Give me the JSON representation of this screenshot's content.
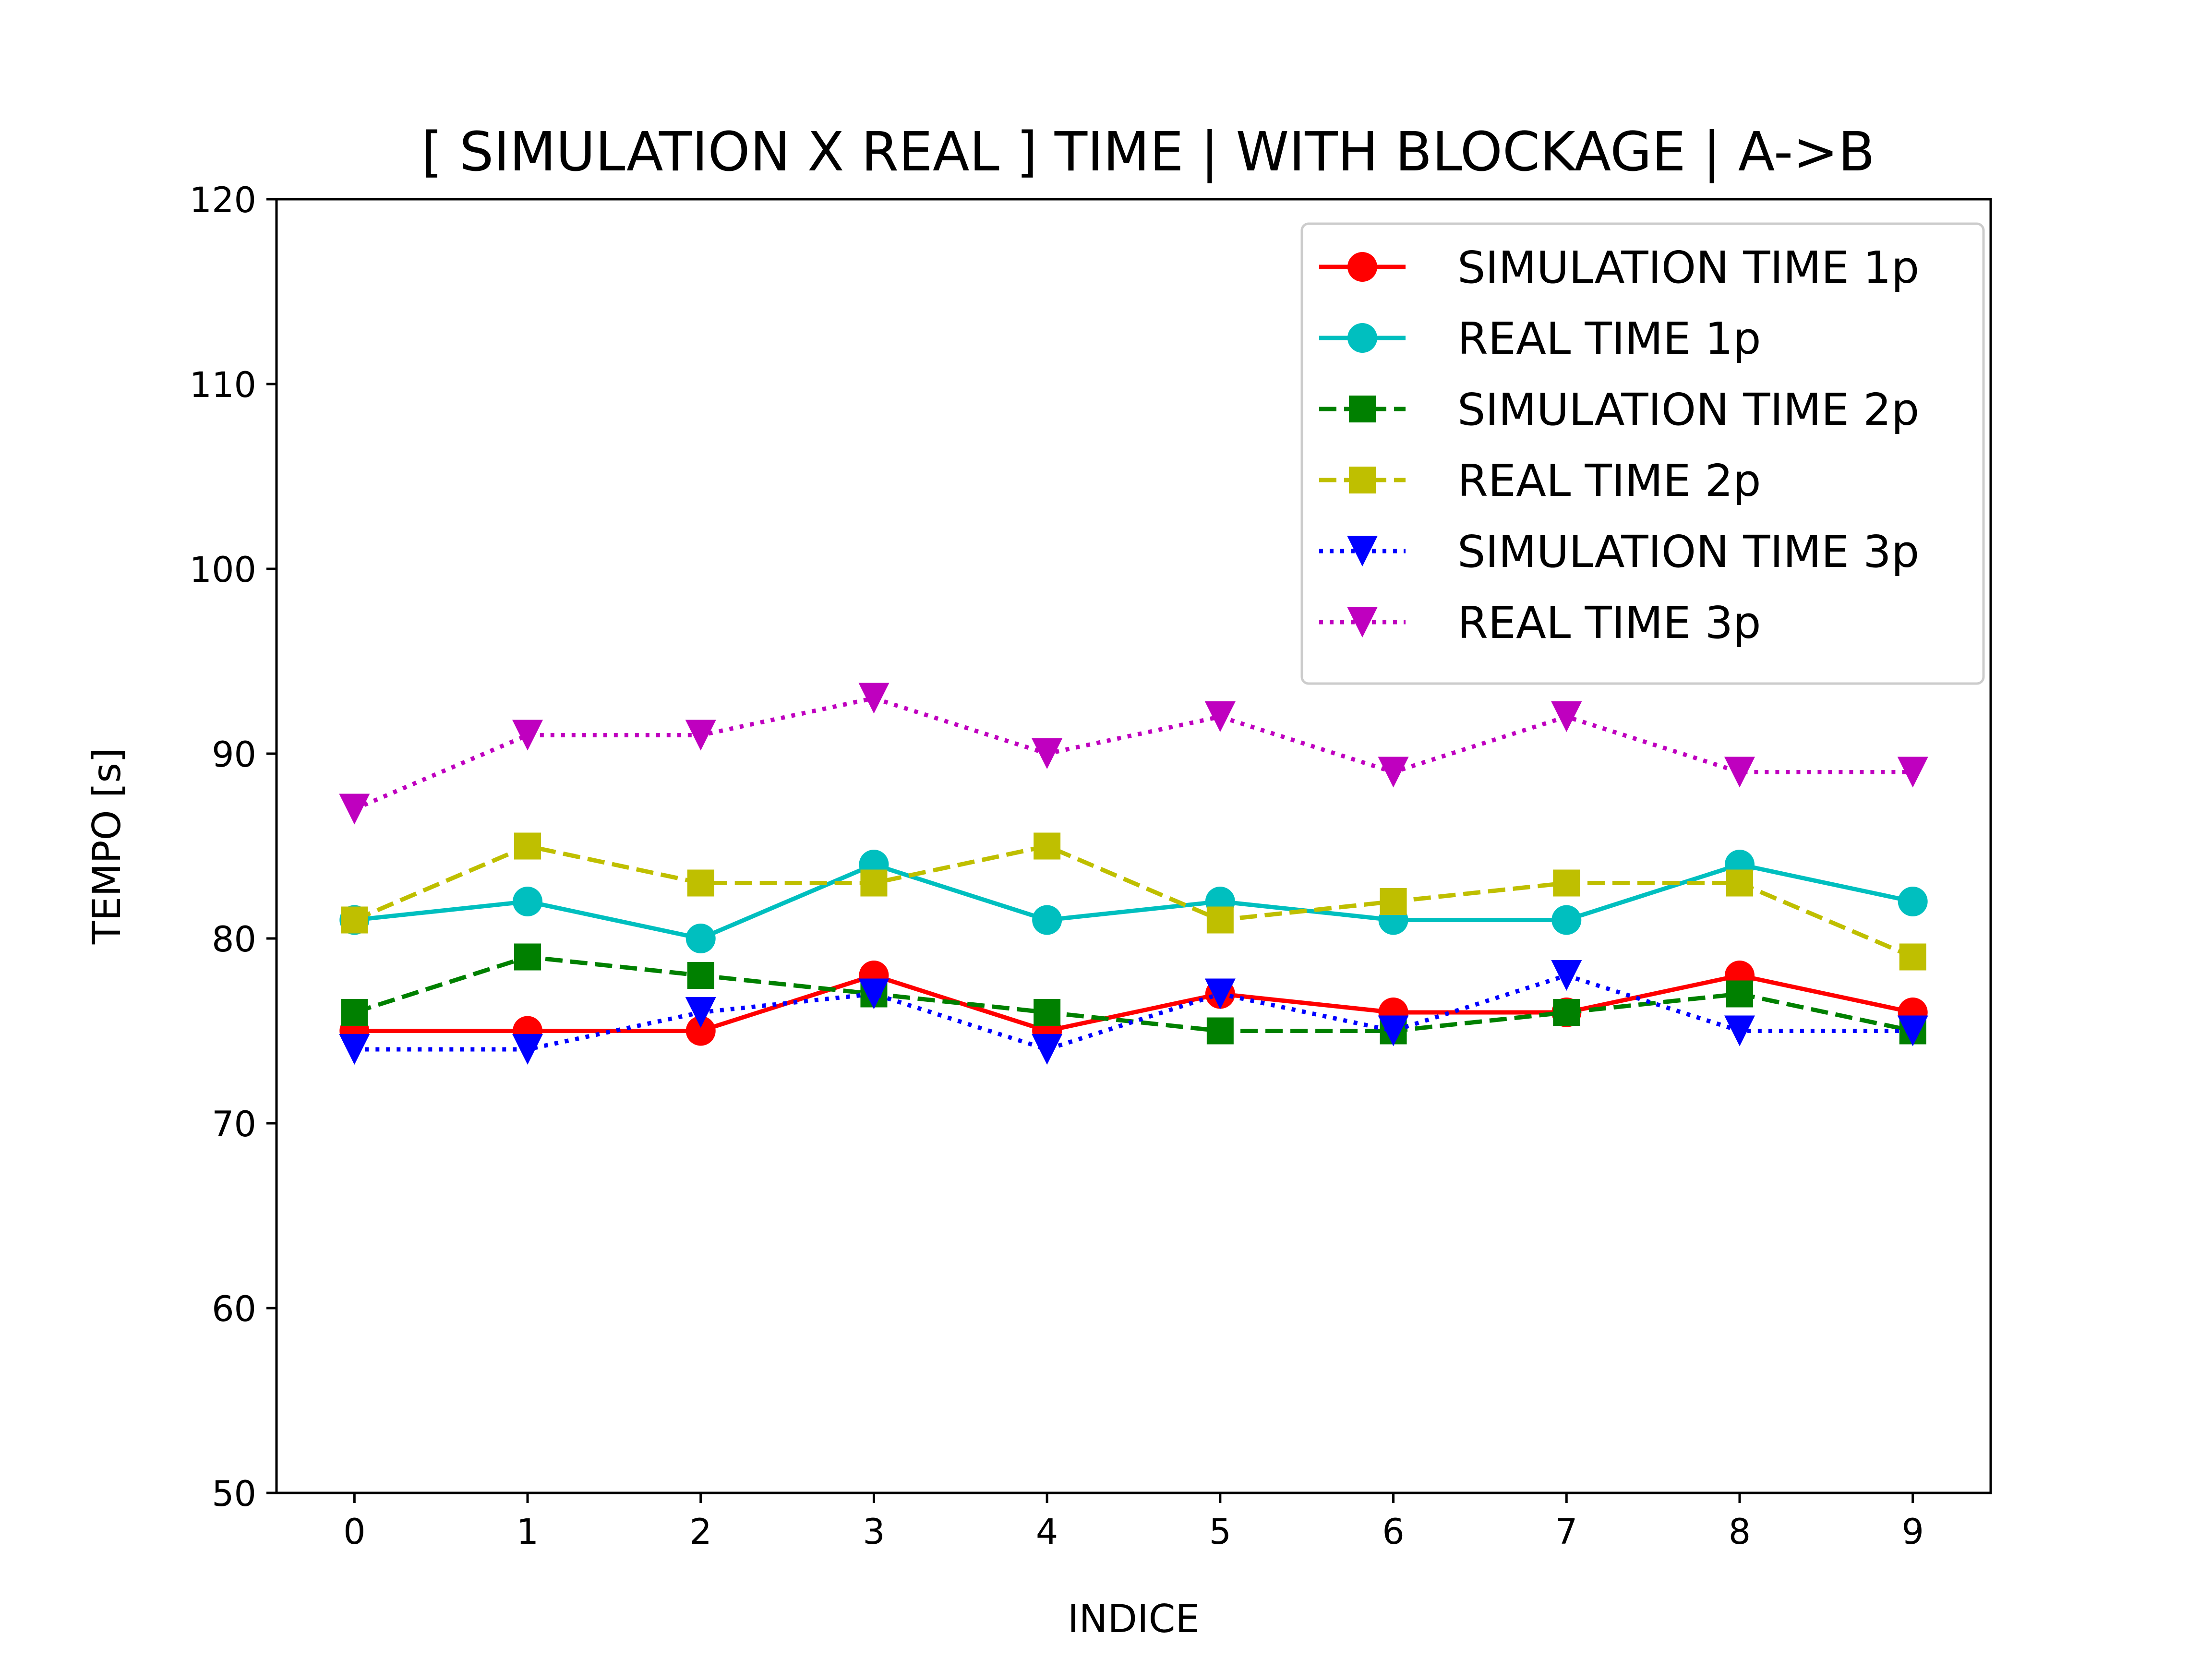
{
  "chart_data": {
    "type": "line",
    "title": "[ SIMULATION X REAL ] TIME | WITH BLOCKAGE | A->B",
    "xlabel": "INDICE",
    "ylabel": "TEMPO [s]",
    "x": [
      0,
      1,
      2,
      3,
      4,
      5,
      6,
      7,
      8,
      9
    ],
    "xticks": [
      "0",
      "1",
      "2",
      "3",
      "4",
      "5",
      "6",
      "7",
      "8",
      "9"
    ],
    "yticks": [
      "50",
      "60",
      "70",
      "80",
      "90",
      "100",
      "110",
      "120"
    ],
    "xlim": [
      -0.45,
      9.45
    ],
    "ylim": [
      50,
      120
    ],
    "grid": false,
    "legend_position": "top-right",
    "series": [
      {
        "name": "SIMULATION TIME 1p",
        "values": [
          75,
          75,
          75,
          78,
          75,
          77,
          76,
          76,
          78,
          76
        ],
        "color": "#ff0000",
        "line_style": "solid",
        "marker": "circle"
      },
      {
        "name": "REAL TIME 1p",
        "values": [
          81,
          82,
          80,
          84,
          81,
          82,
          81,
          81,
          84,
          82
        ],
        "color": "#00bfbf",
        "line_style": "solid",
        "marker": "circle"
      },
      {
        "name": "SIMULATION TIME 2p",
        "values": [
          76,
          79,
          78,
          77,
          76,
          75,
          75,
          76,
          77,
          75
        ],
        "color": "#008000",
        "line_style": "dashed",
        "marker": "square"
      },
      {
        "name": "REAL TIME 2p",
        "values": [
          81,
          85,
          83,
          83,
          85,
          81,
          82,
          83,
          83,
          79
        ],
        "color": "#bfbf00",
        "line_style": "dashed",
        "marker": "square"
      },
      {
        "name": "SIMULATION TIME 3p",
        "values": [
          74,
          74,
          76,
          77,
          74,
          77,
          75,
          78,
          75,
          75
        ],
        "color": "#0000ff",
        "line_style": "dotted",
        "marker": "triangle-down"
      },
      {
        "name": "REAL TIME 3p",
        "values": [
          87,
          91,
          91,
          93,
          90,
          92,
          89,
          92,
          89,
          89
        ],
        "color": "#bf00bf",
        "line_style": "dotted",
        "marker": "triangle-down"
      }
    ]
  }
}
